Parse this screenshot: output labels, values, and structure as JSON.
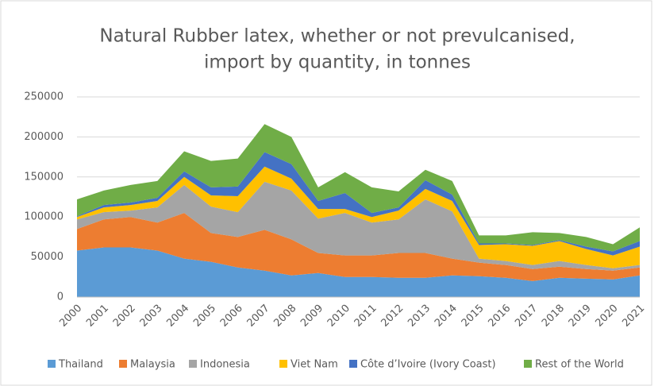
{
  "chart_data": {
    "type": "stacked-area",
    "title": [
      "Natural Rubber latex, whether or not prevulcanised,",
      "import by quantity, in tonnes"
    ],
    "x": [
      2000,
      2001,
      2002,
      2003,
      2004,
      2005,
      2006,
      2007,
      2008,
      2009,
      2010,
      2011,
      2012,
      2013,
      2014,
      2015,
      2016,
      2017,
      2018,
      2019,
      2020,
      2021
    ],
    "ylim": [
      0,
      250000
    ],
    "yticks": [
      0,
      50000,
      100000,
      150000,
      200000,
      250000
    ],
    "grid": true,
    "legend": "bottom",
    "series": [
      {
        "name": "Thailand",
        "color": "#5b9bd5",
        "values": [
          58000,
          62000,
          62000,
          58000,
          48000,
          44000,
          37000,
          33000,
          27000,
          30000,
          25000,
          25000,
          24000,
          24000,
          27000,
          26000,
          24000,
          20000,
          24000,
          23000,
          22000,
          27000
        ]
      },
      {
        "name": "Malaysia",
        "color": "#ed7d31",
        "values": [
          27000,
          35000,
          38000,
          35000,
          57000,
          36000,
          38000,
          51000,
          45000,
          25000,
          27000,
          27000,
          31000,
          31000,
          21000,
          17000,
          16000,
          15000,
          14000,
          12000,
          11000,
          10000
        ]
      },
      {
        "name": "Indonesia",
        "color": "#a5a5a5",
        "values": [
          12000,
          9000,
          8000,
          19000,
          35000,
          33000,
          31000,
          60000,
          61000,
          43000,
          53000,
          41000,
          42000,
          67000,
          59000,
          5000,
          5000,
          5000,
          7000,
          5000,
          3000,
          3000
        ]
      },
      {
        "name": "Viet Nam",
        "color": "#ffc000",
        "values": [
          3000,
          6000,
          7000,
          8000,
          10000,
          14000,
          20000,
          19000,
          15000,
          12000,
          5000,
          7000,
          11000,
          13000,
          13000,
          17000,
          21000,
          24000,
          25000,
          20000,
          16000,
          23000
        ]
      },
      {
        "name": "Côte d’Ivoire (Ivory Coast)",
        "color": "#4472c4",
        "values": [
          1000,
          3000,
          3000,
          4000,
          7000,
          10000,
          12000,
          18000,
          18000,
          10000,
          20000,
          5000,
          4000,
          11000,
          8000,
          2000,
          1000,
          1000,
          1000,
          3000,
          5000,
          7000
        ]
      },
      {
        "name": "Rest of the World",
        "color": "#70ad47",
        "values": [
          21000,
          18000,
          22000,
          21000,
          25000,
          33000,
          35000,
          35000,
          34000,
          17000,
          26000,
          32000,
          20000,
          13000,
          17000,
          10000,
          10000,
          16000,
          9000,
          12000,
          9000,
          17000
        ]
      }
    ]
  }
}
